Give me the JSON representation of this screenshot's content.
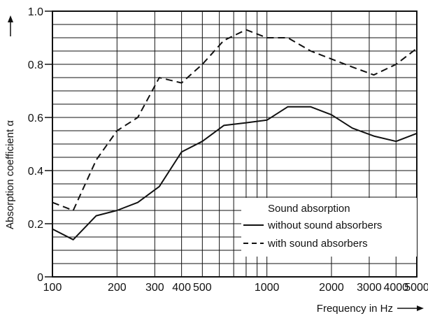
{
  "chart_data": {
    "type": "line",
    "title": "",
    "xlabel": "Frequency in Hz",
    "ylabel": "Absorption coefficient α",
    "x_scale": "log",
    "xlim": [
      100,
      5000
    ],
    "ylim": [
      0,
      1.0
    ],
    "grid": true,
    "x_ticks": [
      100,
      200,
      300,
      400,
      500,
      1000,
      2000,
      3000,
      4000,
      5000
    ],
    "x_tick_labels": [
      "100",
      "200",
      "300",
      "400",
      "500",
      "1000",
      "2000",
      "3000",
      "4000",
      "5000"
    ],
    "y_ticks": [
      0,
      0.2,
      0.4,
      0.6,
      0.8,
      1.0
    ],
    "y_tick_labels": [
      "0",
      "0.2",
      "0.4",
      "0.6",
      "0.8",
      "1.0"
    ],
    "legend": {
      "title": "Sound absorption",
      "placement": "bottom-right"
    },
    "series": [
      {
        "name": "without sound absorbers",
        "line_style": "solid",
        "points": [
          [
            100,
            0.18
          ],
          [
            125,
            0.14
          ],
          [
            160,
            0.23
          ],
          [
            200,
            0.25
          ],
          [
            250,
            0.28
          ],
          [
            315,
            0.34
          ],
          [
            400,
            0.47
          ],
          [
            500,
            0.51
          ],
          [
            630,
            0.57
          ],
          [
            800,
            0.58
          ],
          [
            1000,
            0.59
          ],
          [
            1250,
            0.64
          ],
          [
            1600,
            0.64
          ],
          [
            2000,
            0.61
          ],
          [
            2500,
            0.56
          ],
          [
            3150,
            0.53
          ],
          [
            4000,
            0.51
          ],
          [
            5000,
            0.54
          ]
        ]
      },
      {
        "name": "with sound absorbers",
        "line_style": "dashed",
        "points": [
          [
            100,
            0.28
          ],
          [
            125,
            0.25
          ],
          [
            160,
            0.44
          ],
          [
            200,
            0.55
          ],
          [
            250,
            0.6
          ],
          [
            315,
            0.75
          ],
          [
            400,
            0.73
          ],
          [
            500,
            0.8
          ],
          [
            630,
            0.89
          ],
          [
            800,
            0.93
          ],
          [
            1000,
            0.9
          ],
          [
            1250,
            0.9
          ],
          [
            1600,
            0.85
          ],
          [
            2000,
            0.82
          ],
          [
            2500,
            0.79
          ],
          [
            3150,
            0.76
          ],
          [
            4000,
            0.8
          ],
          [
            5000,
            0.86
          ]
        ]
      }
    ]
  }
}
